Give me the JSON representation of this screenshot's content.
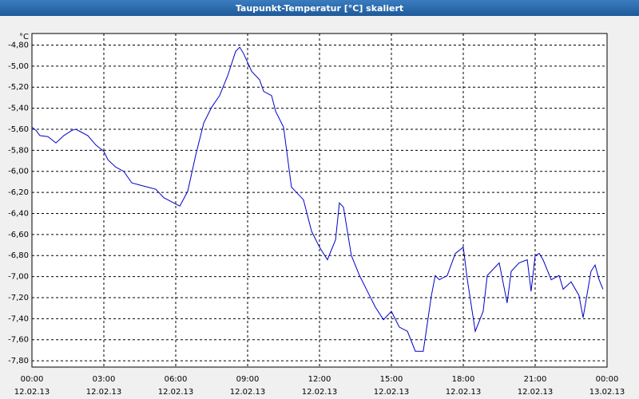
{
  "chart_data": {
    "type": "line",
    "title": "Taupunkt-Temperatur [°C] skaliert",
    "y_unit": "°C",
    "x": [
      0,
      0.17,
      0.33,
      0.67,
      1,
      1.33,
      1.67,
      1.83,
      2,
      2.33,
      2.67,
      3,
      3.17,
      3.5,
      3.83,
      4.17,
      4.5,
      4.83,
      5.17,
      5.5,
      5.83,
      6.17,
      6.5,
      6.83,
      7.17,
      7.5,
      7.83,
      8.17,
      8.5,
      8.67,
      8.83,
      9.17,
      9.5,
      9.67,
      10,
      10.17,
      10.5,
      10.83,
      11,
      11.33,
      11.67,
      12,
      12.33,
      12.67,
      12.83,
      13,
      13.33,
      13.67,
      14,
      14.33,
      14.67,
      15,
      15.33,
      15.67,
      16,
      16.33,
      16.67,
      16.83,
      17,
      17.33,
      17.67,
      18,
      18.17,
      18.5,
      18.83,
      19,
      19.33,
      19.5,
      19.83,
      20,
      20.33,
      20.67,
      20.83,
      21,
      21.17,
      21.33,
      21.67,
      22,
      22.17,
      22.5,
      22.83,
      23,
      23.33,
      23.5,
      23.67,
      23.83
    ],
    "series": [
      {
        "color": "#0000c8",
        "values": [
          -5.58,
          -5.61,
          -5.66,
          -5.67,
          -5.73,
          -5.66,
          -5.61,
          -5.6,
          -5.62,
          -5.66,
          -5.75,
          -5.81,
          -5.89,
          -5.96,
          -6.0,
          -6.11,
          -6.13,
          -6.15,
          -6.17,
          -6.25,
          -6.29,
          -6.33,
          -6.19,
          -5.85,
          -5.54,
          -5.39,
          -5.28,
          -5.09,
          -4.86,
          -4.82,
          -4.88,
          -5.05,
          -5.13,
          -5.24,
          -5.28,
          -5.43,
          -5.58,
          -6.15,
          -6.19,
          -6.27,
          -6.57,
          -6.72,
          -6.84,
          -6.65,
          -6.3,
          -6.34,
          -6.8,
          -6.99,
          -7.14,
          -7.29,
          -7.41,
          -7.33,
          -7.48,
          -7.52,
          -7.71,
          -7.71,
          -7.18,
          -6.99,
          -7.03,
          -6.99,
          -6.78,
          -6.72,
          -7.03,
          -7.52,
          -7.33,
          -6.99,
          -6.91,
          -6.87,
          -7.25,
          -6.95,
          -6.87,
          -6.84,
          -7.14,
          -6.8,
          -6.78,
          -6.84,
          -7.03,
          -6.99,
          -7.12,
          -7.05,
          -7.18,
          -7.39,
          -6.95,
          -6.89,
          -7.03,
          -7.12
        ]
      }
    ],
    "xlim": [
      0,
      24
    ],
    "xticks": [
      {
        "value": 0,
        "label": "00:00"
      },
      {
        "value": 3,
        "label": "03:00"
      },
      {
        "value": 6,
        "label": "06:00"
      },
      {
        "value": 9,
        "label": "09:00"
      },
      {
        "value": 12,
        "label": "12:00"
      },
      {
        "value": 15,
        "label": "15:00"
      },
      {
        "value": 18,
        "label": "18:00"
      },
      {
        "value": 21,
        "label": "21:00"
      },
      {
        "value": 24,
        "label": "00:00"
      }
    ],
    "xtick_dates": [
      "12.02.13",
      "12.02.13",
      "12.02.13",
      "12.02.13",
      "12.02.13",
      "12.02.13",
      "12.02.13",
      "12.02.13",
      "13.02.13"
    ],
    "ylim": [
      -7.86,
      -4.69
    ],
    "yticks": [
      {
        "value": -4.8,
        "label": "-4,80"
      },
      {
        "value": -5.0,
        "label": "-5,00"
      },
      {
        "value": -5.2,
        "label": "-5,20"
      },
      {
        "value": -5.4,
        "label": "-5,40"
      },
      {
        "value": -5.6,
        "label": "-5,60"
      },
      {
        "value": -5.8,
        "label": "-5,80"
      },
      {
        "value": -6.0,
        "label": "-6,00"
      },
      {
        "value": -6.2,
        "label": "-6,20"
      },
      {
        "value": -6.4,
        "label": "-6,40"
      },
      {
        "value": -6.6,
        "label": "-6,60"
      },
      {
        "value": -6.8,
        "label": "-6,80"
      },
      {
        "value": -7.0,
        "label": "-7,00"
      },
      {
        "value": -7.2,
        "label": "-7,20"
      },
      {
        "value": -7.4,
        "label": "-7,40"
      },
      {
        "value": -7.6,
        "label": "-7,60"
      },
      {
        "value": -7.8,
        "label": "-7,80"
      }
    ],
    "grid": true
  }
}
